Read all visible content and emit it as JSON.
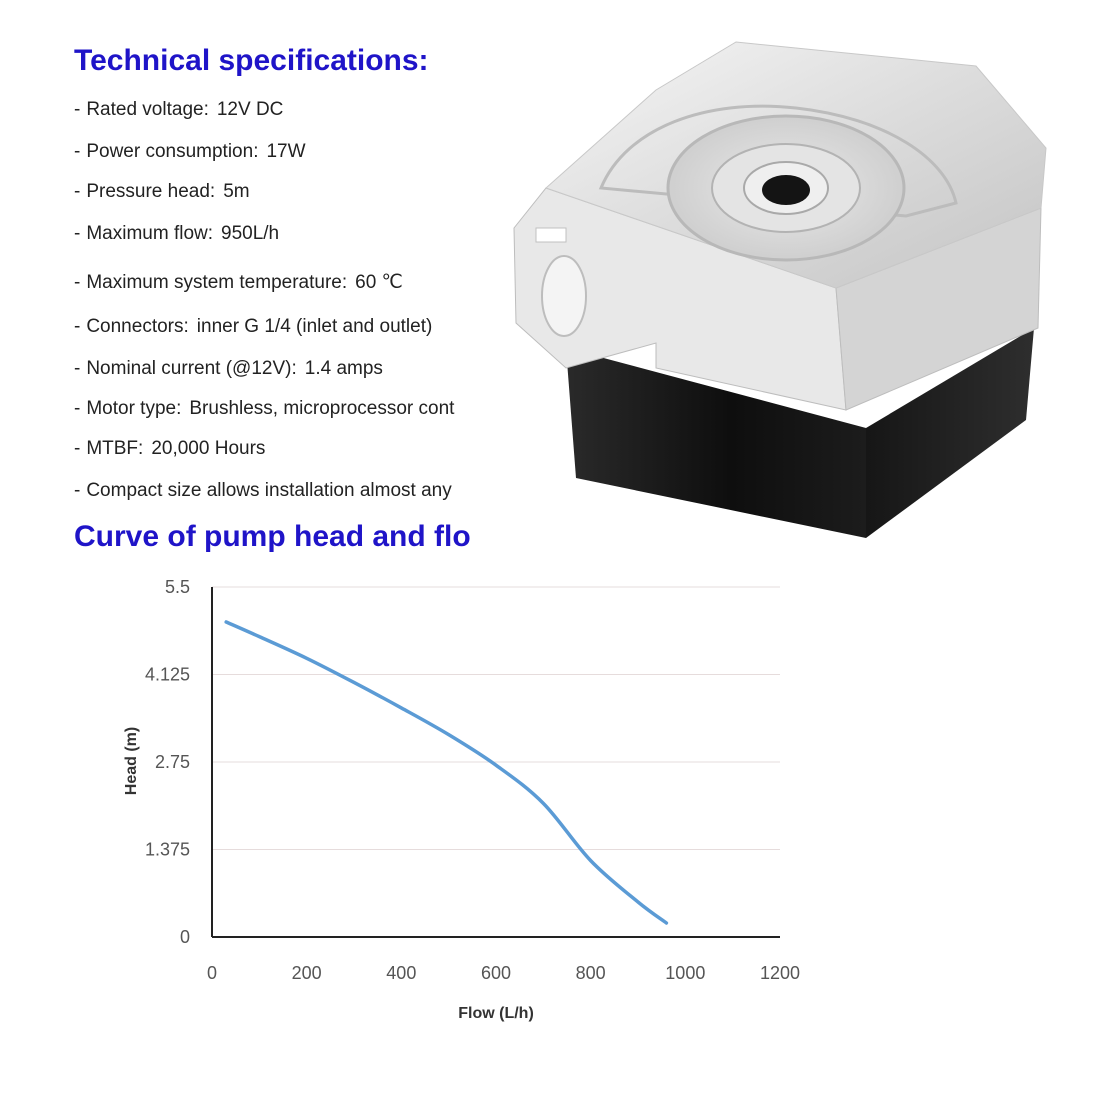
{
  "specs": {
    "title": "Technical specifications:",
    "items": [
      {
        "label": "Rated voltage:",
        "value": "12V DC"
      },
      {
        "label": "Power consumption:",
        "value": "17W"
      },
      {
        "label": "Pressure head:",
        "value": "5m"
      },
      {
        "label": "Maximum flow:",
        "value": "950L/h"
      },
      {
        "label": "Maximum system temperature:",
        "value": "60 ℃"
      },
      {
        "label": "Connectors:",
        "value": "inner G 1/4 (inlet and outlet)"
      },
      {
        "label": "Nominal current (@12V):",
        "value": "1.4 amps"
      },
      {
        "label": "Motor type:",
        "value": "Brushless, microprocessor cont"
      },
      {
        "label": "MTBF:",
        "value": "20,000 Hours"
      },
      {
        "label": "Compact size allows installation almost any",
        "value": ""
      }
    ]
  },
  "curve_title": "Curve of pump head and flo",
  "colors": {
    "heading": "#1f14c8",
    "line": "#5b9bd5",
    "grid": "#e6dcdc",
    "axis": "#222222"
  },
  "chart_data": {
    "type": "line",
    "x": [
      30,
      100,
      200,
      300,
      400,
      500,
      600,
      700,
      800,
      900,
      960
    ],
    "y": [
      4.95,
      4.72,
      4.38,
      4.0,
      3.6,
      3.18,
      2.7,
      2.1,
      1.2,
      0.55,
      0.22
    ],
    "xlabel": "Flow (L/h)",
    "ylabel": "Head (m)",
    "xlim": [
      0,
      1200
    ],
    "ylim": [
      0,
      5.5
    ],
    "x_ticks": [
      "0",
      "200",
      "400",
      "600",
      "800",
      "1000",
      "1200"
    ],
    "y_ticks": [
      "0",
      "1.375",
      "2.75",
      "4.125",
      "5.5"
    ],
    "grid": "horizontal",
    "legend": "none"
  }
}
